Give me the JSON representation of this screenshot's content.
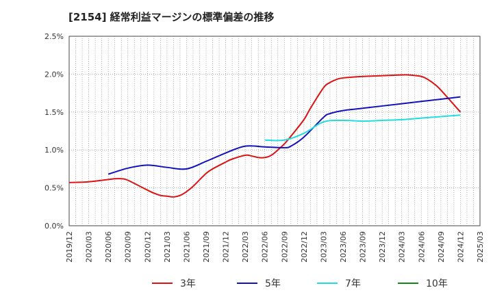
{
  "title": "[2154]  経常利益マージンの標準偏差の推移",
  "chart_data": {
    "type": "line",
    "title": "[2154]  経常利益マージンの標準偏差の推移",
    "ylim": [
      0,
      2.5
    ],
    "y_ticks": [
      "0.0%",
      "0.5%",
      "1.0%",
      "1.5%",
      "2.0%",
      "2.5%"
    ],
    "x_ticks": [
      "2019/12",
      "2020/03",
      "2020/06",
      "2020/09",
      "2020/12",
      "2021/03",
      "2021/06",
      "2021/09",
      "2021/12",
      "2022/03",
      "2022/06",
      "2022/09",
      "2022/12",
      "2023/03",
      "2023/06",
      "2023/09",
      "2023/12",
      "2024/03",
      "2024/06",
      "2024/09",
      "2024/12",
      "2025/03"
    ],
    "grid": true,
    "legend_position": "bottom",
    "series": [
      {
        "name": "3年",
        "color": "#dd1111",
        "x": [
          "2019/12",
          "2020/03",
          "2020/06",
          "2020/07",
          "2020/08",
          "2020/09",
          "2020/12",
          "2021/01",
          "2021/02",
          "2021/03",
          "2021/04",
          "2021/05",
          "2021/06",
          "2021/07",
          "2021/09",
          "2021/10",
          "2021/12",
          "2022/01",
          "2022/03",
          "2022/04",
          "2022/05",
          "2022/06",
          "2022/07",
          "2022/08",
          "2022/09",
          "2022/10",
          "2022/12",
          "2023/01",
          "2023/03",
          "2023/04",
          "2023/05",
          "2023/06",
          "2023/09",
          "2023/12",
          "2024/03",
          "2024/04",
          "2024/06",
          "2024/07",
          "2024/08",
          "2024/09",
          "2024/12"
        ],
        "values": [
          0.57,
          0.58,
          0.61,
          0.62,
          0.62,
          0.6,
          0.47,
          0.43,
          0.4,
          0.39,
          0.38,
          0.4,
          0.45,
          0.52,
          0.69,
          0.75,
          0.84,
          0.88,
          0.93,
          0.92,
          0.9,
          0.9,
          0.93,
          1.0,
          1.08,
          1.18,
          1.4,
          1.55,
          1.82,
          1.89,
          1.93,
          1.95,
          1.97,
          1.98,
          1.99,
          1.99,
          1.97,
          1.93,
          1.87,
          1.79,
          1.5
        ]
      },
      {
        "name": "5年",
        "color": "#1111bb",
        "x": [
          "2020/06",
          "2020/09",
          "2020/12",
          "2021/03",
          "2021/06",
          "2021/09",
          "2021/12",
          "2022/03",
          "2022/06",
          "2022/09",
          "2022/10",
          "2022/12",
          "2023/03",
          "2023/04",
          "2023/06",
          "2023/09",
          "2023/12",
          "2024/03",
          "2024/06",
          "2024/09",
          "2024/12"
        ],
        "values": [
          0.68,
          0.76,
          0.8,
          0.77,
          0.75,
          0.85,
          0.96,
          1.05,
          1.04,
          1.03,
          1.05,
          1.17,
          1.43,
          1.48,
          1.52,
          1.55,
          1.58,
          1.61,
          1.64,
          1.67,
          1.7
        ]
      },
      {
        "name": "7年",
        "color": "#22dddd",
        "x": [
          "2022/06",
          "2022/09",
          "2022/12",
          "2023/03",
          "2023/06",
          "2023/09",
          "2023/12",
          "2024/03",
          "2024/06",
          "2024/09",
          "2024/12"
        ],
        "values": [
          1.13,
          1.13,
          1.22,
          1.37,
          1.39,
          1.38,
          1.39,
          1.4,
          1.42,
          1.44,
          1.46
        ]
      },
      {
        "name": "10年",
        "color": "#118811",
        "x": [],
        "values": []
      }
    ]
  }
}
